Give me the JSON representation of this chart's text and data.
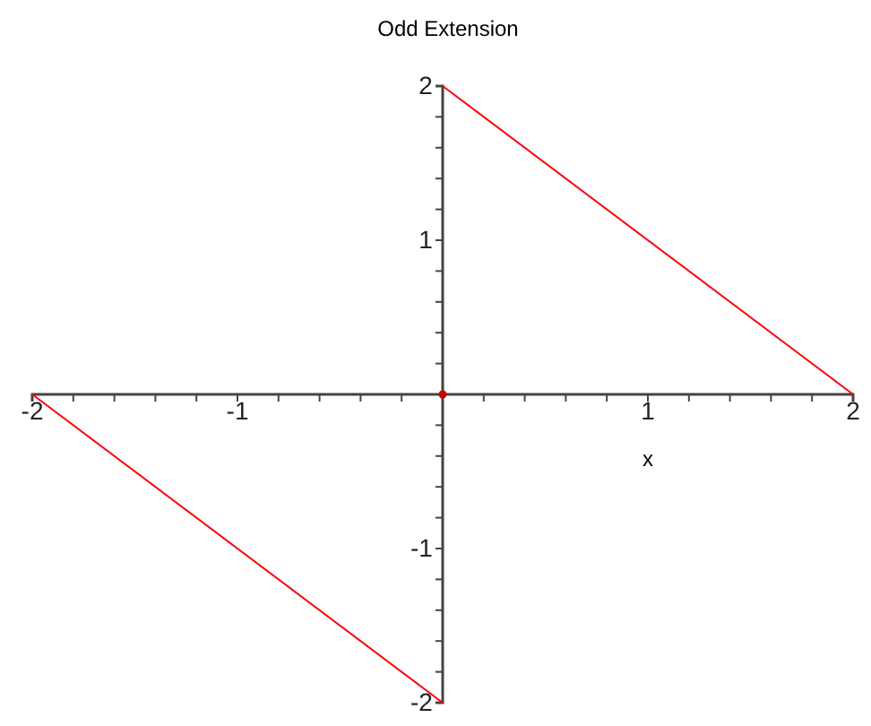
{
  "chart_data": {
    "type": "line",
    "title": "Odd Extension",
    "xlabel": "x",
    "xlim": [
      -2,
      2
    ],
    "ylim": [
      -2,
      2
    ],
    "xticks": [
      -2,
      {
        "value": -1.8,
        "label": null
      },
      {
        "value": -1.6,
        "label": null
      },
      {
        "value": -1.4,
        "label": null
      },
      {
        "value": -1.2,
        "label": null
      },
      -1,
      {
        "value": -0.8,
        "label": null
      },
      {
        "value": -0.6,
        "label": null
      },
      {
        "value": -0.4,
        "label": null
      },
      {
        "value": -0.2,
        "label": null
      },
      {
        "value": 0.2,
        "label": null
      },
      {
        "value": 0.4,
        "label": null
      },
      {
        "value": 0.6,
        "label": null
      },
      {
        "value": 0.8,
        "label": null
      },
      1,
      {
        "value": 1.2,
        "label": null
      },
      {
        "value": 1.4,
        "label": null
      },
      {
        "value": 1.6,
        "label": null
      },
      {
        "value": 1.8,
        "label": null
      },
      2
    ],
    "yticks": [
      -2,
      {
        "value": -1.8,
        "label": null
      },
      {
        "value": -1.6,
        "label": null
      },
      {
        "value": -1.4,
        "label": null
      },
      {
        "value": -1.2,
        "label": null
      },
      -1,
      {
        "value": -0.8,
        "label": null
      },
      {
        "value": -0.6,
        "label": null
      },
      {
        "value": -0.4,
        "label": null
      },
      {
        "value": -0.2,
        "label": null
      },
      {
        "value": 0.2,
        "label": null
      },
      {
        "value": 0.4,
        "label": null
      },
      {
        "value": 0.6,
        "label": null
      },
      {
        "value": 0.8,
        "label": null
      },
      1,
      {
        "value": 1.2,
        "label": null
      },
      {
        "value": 1.4,
        "label": null
      },
      {
        "value": 1.6,
        "label": null
      },
      {
        "value": 1.8,
        "label": null
      },
      2
    ],
    "grid": false,
    "series": [
      {
        "color": "#ff0000",
        "x": [
          -2,
          0
        ],
        "values": [
          0,
          -2
        ],
        "marker": "none",
        "line_style": "solid"
      },
      {
        "color": "#ff0000",
        "x": [
          0,
          2
        ],
        "values": [
          2,
          0
        ],
        "marker": "none",
        "line_style": "solid"
      },
      {
        "type": "scatter",
        "color": "#cc0000",
        "x": [
          0
        ],
        "values": [
          0
        ],
        "marker": "circle"
      }
    ]
  }
}
